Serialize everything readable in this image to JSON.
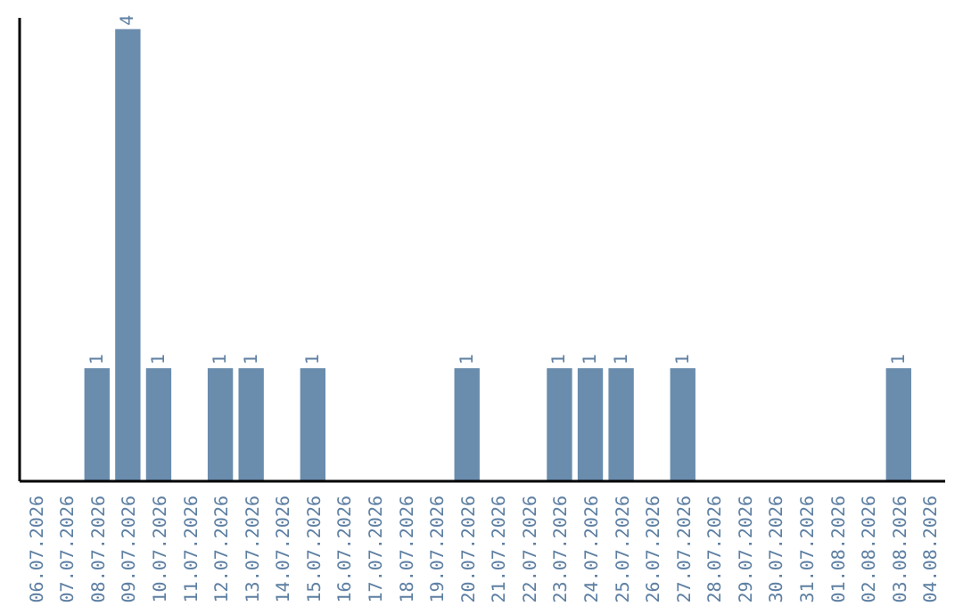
{
  "chart_data": {
    "type": "bar",
    "categories": [
      "06.07.2026",
      "07.07.2026",
      "08.07.2026",
      "09.07.2026",
      "10.07.2026",
      "11.07.2026",
      "12.07.2026",
      "13.07.2026",
      "14.07.2026",
      "15.07.2026",
      "16.07.2026",
      "17.07.2026",
      "18.07.2026",
      "19.07.2026",
      "20.07.2026",
      "21.07.2026",
      "22.07.2026",
      "23.07.2026",
      "24.07.2026",
      "25.07.2026",
      "26.07.2026",
      "27.07.2026",
      "28.07.2026",
      "29.07.2026",
      "30.07.2026",
      "31.07.2026",
      "01.08.2026",
      "02.08.2026",
      "03.08.2026",
      "04.08.2026"
    ],
    "values": [
      0,
      0,
      1,
      4,
      1,
      0,
      1,
      1,
      0,
      1,
      0,
      0,
      0,
      0,
      1,
      0,
      0,
      1,
      1,
      1,
      0,
      1,
      0,
      0,
      0,
      0,
      0,
      0,
      1,
      0
    ],
    "value_labels": [
      null,
      null,
      "1",
      "4",
      "1",
      null,
      "1",
      "1",
      null,
      "1",
      null,
      null,
      null,
      null,
      "1",
      null,
      null,
      "1",
      "1",
      "1",
      null,
      "1",
      null,
      null,
      null,
      null,
      null,
      null,
      "1",
      null
    ],
    "color": "#6a8cad",
    "ylim": [
      0,
      4.1
    ],
    "tick_labels": "x"
  }
}
